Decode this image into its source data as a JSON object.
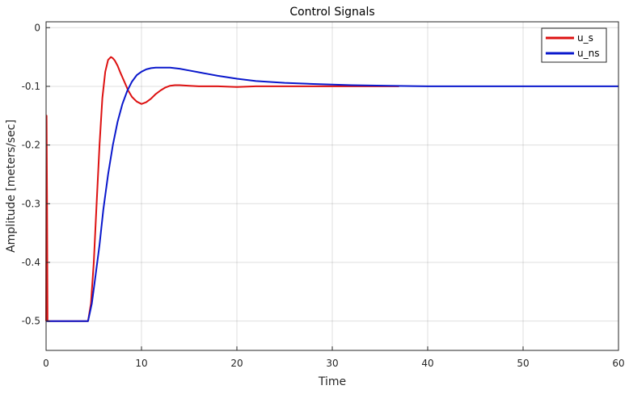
{
  "chart_data": {
    "type": "line",
    "title": "Control Signals",
    "xlabel": "Time",
    "ylabel": "Amplitude [meters/sec]",
    "xlim": [
      0,
      60
    ],
    "ylim": [
      -0.55,
      0.01
    ],
    "xticks": [
      0,
      10,
      20,
      30,
      40,
      50,
      60
    ],
    "xtick_labels": [
      "0",
      "10",
      "20",
      "30",
      "40",
      "50",
      "60"
    ],
    "yticks": [
      0,
      -0.1,
      -0.2,
      -0.3,
      -0.4,
      -0.5
    ],
    "ytick_labels": [
      "0",
      "-0.1",
      "-0.2",
      "-0.3",
      "-0.4",
      "-0.5"
    ],
    "grid": true,
    "legend_position": "top-right",
    "series": [
      {
        "name": "u_s",
        "color": "#dd1111",
        "x": [
          0,
          0.05,
          0.1,
          0.15,
          0.2,
          0.3,
          0.4,
          0.5,
          0.55,
          1,
          2,
          3,
          4,
          4.4,
          4.7,
          5,
          5.3,
          5.6,
          5.9,
          6.2,
          6.5,
          6.8,
          7.0,
          7.2,
          7.5,
          7.8,
          8.2,
          8.6,
          9.0,
          9.5,
          10.0,
          10.5,
          11.0,
          11.5,
          12.0,
          12.5,
          13.0,
          13.5,
          14.0,
          15.0,
          16.0,
          17.0,
          18.0,
          20.0,
          22.0,
          25.0,
          30.0,
          35.0,
          37.0
        ],
        "values": [
          -0.5,
          -0.15,
          -0.3,
          -0.5,
          -0.5,
          -0.5,
          -0.5,
          -0.5,
          -0.5,
          -0.5,
          -0.5,
          -0.5,
          -0.5,
          -0.5,
          -0.47,
          -0.4,
          -0.3,
          -0.2,
          -0.12,
          -0.075,
          -0.055,
          -0.05,
          -0.052,
          -0.056,
          -0.065,
          -0.077,
          -0.092,
          -0.107,
          -0.118,
          -0.126,
          -0.13,
          -0.127,
          -0.121,
          -0.113,
          -0.107,
          -0.102,
          -0.099,
          -0.098,
          -0.098,
          -0.099,
          -0.1,
          -0.1,
          -0.1,
          -0.101,
          -0.1,
          -0.1,
          -0.1,
          -0.1,
          -0.1
        ]
      },
      {
        "name": "u_ns",
        "color": "#0a18cc",
        "x": [
          0,
          1,
          2,
          3,
          4,
          4.4,
          4.8,
          5.2,
          5.6,
          6.0,
          6.5,
          7.0,
          7.5,
          8.0,
          8.5,
          9.0,
          9.5,
          10.0,
          10.5,
          11.0,
          11.5,
          12.0,
          13.0,
          14.0,
          15.0,
          16.0,
          17.0,
          18.0,
          20.0,
          22.0,
          25.0,
          28.0,
          32.0,
          36.0,
          40.0,
          45.0,
          50.0,
          55.0,
          60.0
        ],
        "values": [
          -0.5,
          -0.5,
          -0.5,
          -0.5,
          -0.5,
          -0.5,
          -0.47,
          -0.42,
          -0.37,
          -0.31,
          -0.25,
          -0.2,
          -0.16,
          -0.13,
          -0.108,
          -0.092,
          -0.081,
          -0.075,
          -0.071,
          -0.069,
          -0.068,
          -0.068,
          -0.068,
          -0.07,
          -0.073,
          -0.076,
          -0.079,
          -0.082,
          -0.087,
          -0.091,
          -0.094,
          -0.096,
          -0.098,
          -0.099,
          -0.1,
          -0.1,
          -0.1,
          -0.1,
          -0.1
        ]
      }
    ]
  }
}
